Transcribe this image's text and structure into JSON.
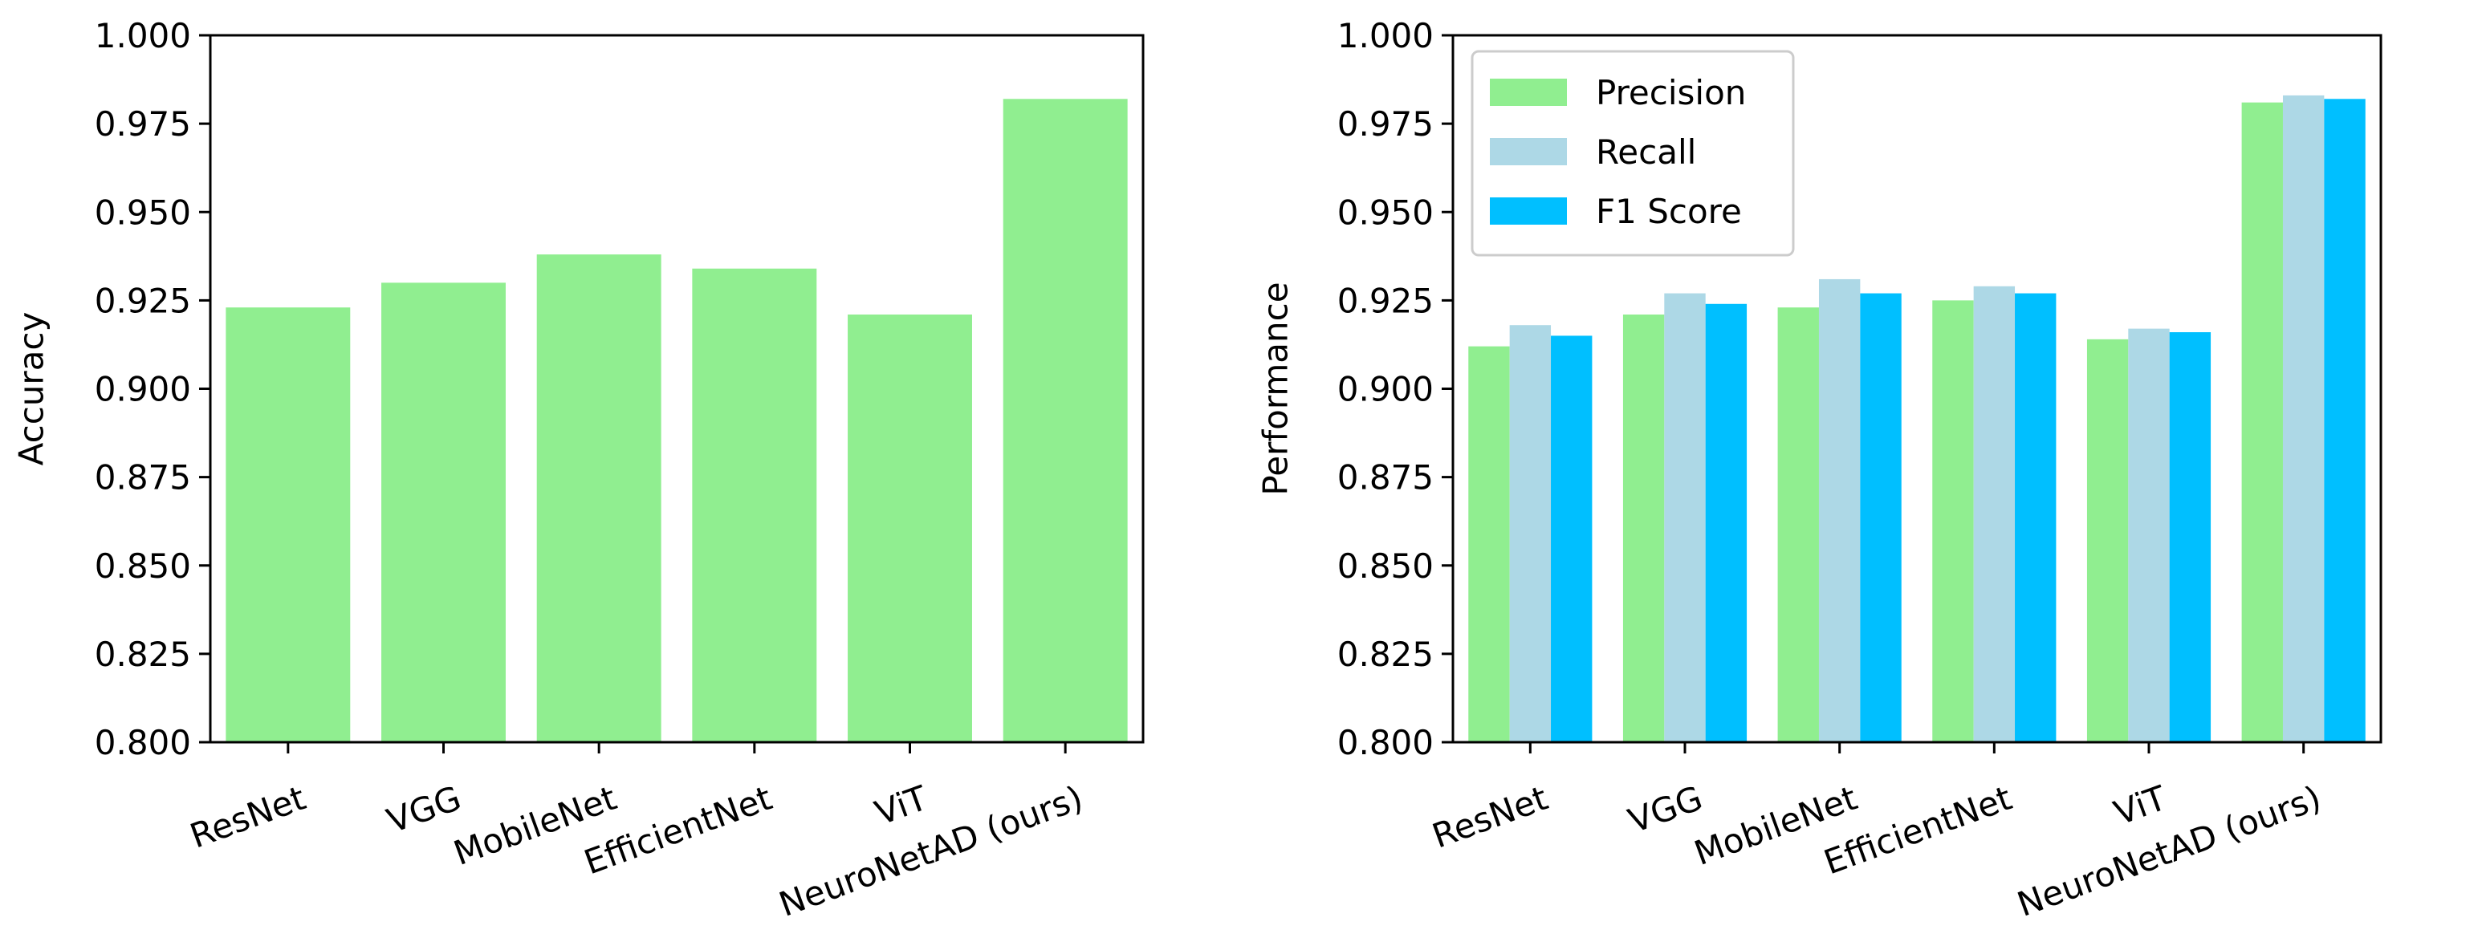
{
  "chart_data": [
    {
      "type": "bar",
      "title": "",
      "xlabel": "",
      "ylabel": "Accuracy",
      "ylim": [
        0.8,
        1.0
      ],
      "yticks": [
        "0.800",
        "0.825",
        "0.850",
        "0.875",
        "0.900",
        "0.925",
        "0.950",
        "0.975",
        "1.000"
      ],
      "categories": [
        "ResNet",
        "VGG",
        "MobileNet",
        "EfficientNet",
        "ViT",
        "NeuroNetAD (ours)"
      ],
      "series": [
        {
          "name": "Accuracy",
          "color": "#90ee90",
          "values": [
            0.923,
            0.93,
            0.938,
            0.934,
            0.921,
            0.982
          ]
        }
      ]
    },
    {
      "type": "bar",
      "title": "",
      "xlabel": "",
      "ylabel": "Performance",
      "ylim": [
        0.8,
        1.0
      ],
      "yticks": [
        "0.800",
        "0.825",
        "0.850",
        "0.875",
        "0.900",
        "0.925",
        "0.950",
        "0.975",
        "1.000"
      ],
      "categories": [
        "ResNet",
        "VGG",
        "MobileNet",
        "EfficientNet",
        "ViT",
        "NeuroNetAD (ours)"
      ],
      "legend_position": "top-left",
      "series": [
        {
          "name": "Precision",
          "color": "#90ee90",
          "values": [
            0.912,
            0.921,
            0.923,
            0.925,
            0.914,
            0.981
          ]
        },
        {
          "name": "Recall",
          "color": "#add8e6",
          "values": [
            0.918,
            0.927,
            0.931,
            0.929,
            0.917,
            0.983
          ]
        },
        {
          "name": "F1 Score",
          "color": "#00bfff",
          "values": [
            0.915,
            0.924,
            0.927,
            0.927,
            0.916,
            0.982
          ]
        }
      ]
    }
  ]
}
